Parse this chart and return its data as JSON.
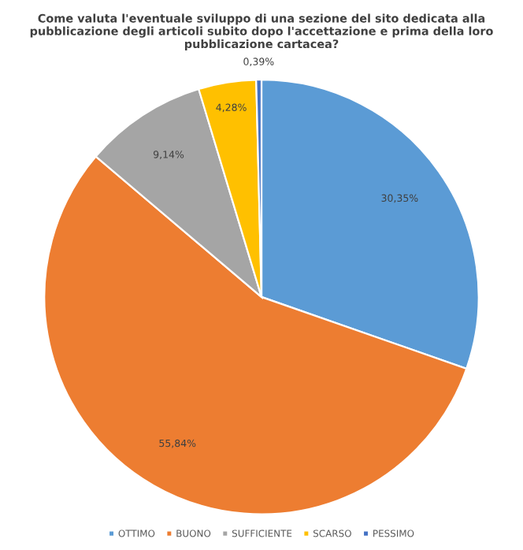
{
  "chart_data": {
    "type": "pie",
    "title": "Come valuta l'eventuale sviluppo di una sezione del sito dedicata alla pubblicazione degli articoli subito dopo l'accettazione e prima della loro pubblicazione cartacea?",
    "categories": [
      "OTTIMO",
      "BUONO",
      "SUFFICIENTE",
      "SCARSO",
      "PESSIMO"
    ],
    "values": [
      30.35,
      55.84,
      9.14,
      4.28,
      0.39
    ],
    "value_labels": [
      "30,35%",
      "55,84%",
      "9,14%",
      "4,28%",
      "0,39%"
    ],
    "colors": [
      "#5b9bd5",
      "#ed7d31",
      "#a5a5a5",
      "#ffc000",
      "#4472c4"
    ],
    "legend": "bottom"
  }
}
